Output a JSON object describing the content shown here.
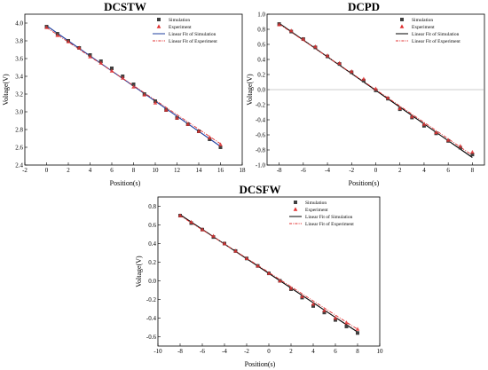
{
  "chart_data": [
    {
      "type": "scatter",
      "title": "DCSTW",
      "xlabel": "Position(s)",
      "ylabel": "Voltage(V)",
      "xlim": [
        -2,
        18
      ],
      "ylim": [
        2.4,
        4.1
      ],
      "xticks": [
        -2,
        0,
        2,
        4,
        6,
        8,
        10,
        12,
        14,
        16,
        18
      ],
      "yticks": [
        2.4,
        2.6,
        2.8,
        3.0,
        3.2,
        3.4,
        3.6,
        3.8,
        4.0
      ],
      "ytick_decimals": 1,
      "zero_line": false,
      "legend": "top-right",
      "series": [
        {
          "name": "Simulation",
          "marker": "square",
          "color": "#404040",
          "x": [
            0,
            1,
            2,
            3,
            4,
            5,
            6,
            7,
            8,
            9,
            10,
            11,
            12,
            13,
            14,
            15,
            16
          ],
          "y": [
            3.96,
            3.88,
            3.8,
            3.72,
            3.64,
            3.57,
            3.49,
            3.4,
            3.31,
            3.2,
            3.12,
            3.02,
            2.93,
            2.86,
            2.78,
            2.69,
            2.6
          ]
        },
        {
          "name": "Experiment",
          "marker": "triangle",
          "color": "#e03030",
          "x": [
            0,
            1,
            2,
            3,
            4,
            5,
            6,
            7,
            8,
            9,
            10,
            11,
            12,
            13,
            14,
            15,
            16
          ],
          "y": [
            3.95,
            3.86,
            3.79,
            3.72,
            3.62,
            3.55,
            3.46,
            3.38,
            3.28,
            3.19,
            3.1,
            3.02,
            2.93,
            2.86,
            2.78,
            2.71,
            2.63
          ]
        },
        {
          "name": "Linear Fit of Simulation",
          "style": "solid",
          "color": "#1f3f9f",
          "x": [
            0,
            16
          ],
          "y": [
            3.97,
            2.61
          ]
        },
        {
          "name": "Linear Fit of Experiment",
          "style": "dashdot",
          "color": "#e03030",
          "x": [
            0,
            16
          ],
          "y": [
            3.95,
            2.64
          ]
        }
      ]
    },
    {
      "type": "scatter",
      "title": "DCPD",
      "xlabel": "Position(s)",
      "ylabel": "Voltage(V)",
      "xlim": [
        -9,
        9
      ],
      "ylim": [
        -1.0,
        1.0
      ],
      "xticks": [
        -8,
        -6,
        -4,
        -2,
        0,
        2,
        4,
        6,
        8
      ],
      "yticks": [
        -1.0,
        -0.8,
        -0.6,
        -0.4,
        -0.2,
        0.0,
        0.2,
        0.4,
        0.6,
        0.8,
        1.0
      ],
      "ytick_decimals": 1,
      "zero_line": true,
      "legend": "top-right",
      "series": [
        {
          "name": "Simulation",
          "marker": "square",
          "color": "#404040",
          "x": [
            -8,
            -7,
            -6,
            -5,
            -4,
            -3,
            -2,
            -1,
            0,
            1,
            2,
            3,
            4,
            5,
            6,
            7,
            8
          ],
          "y": [
            0.87,
            0.77,
            0.67,
            0.56,
            0.44,
            0.34,
            0.23,
            0.12,
            -0.01,
            -0.12,
            -0.26,
            -0.37,
            -0.48,
            -0.58,
            -0.68,
            -0.77,
            -0.86
          ]
        },
        {
          "name": "Experiment",
          "marker": "triangle",
          "color": "#e03030",
          "x": [
            -8,
            -7,
            -6,
            -5,
            -4,
            -3,
            -2,
            -1,
            0,
            1,
            2,
            3,
            4,
            5,
            6,
            7,
            8
          ],
          "y": [
            0.86,
            0.78,
            0.67,
            0.57,
            0.45,
            0.35,
            0.24,
            0.14,
            0.01,
            -0.11,
            -0.25,
            -0.36,
            -0.46,
            -0.57,
            -0.67,
            -0.75,
            -0.83
          ]
        },
        {
          "name": "Linear Fit of Simulation",
          "style": "solid",
          "color": "#000000",
          "x": [
            -8,
            8
          ],
          "y": [
            0.88,
            -0.9
          ]
        },
        {
          "name": "Linear Fit of Experiment",
          "style": "dashdot",
          "color": "#e03030",
          "x": [
            -8,
            8
          ],
          "y": [
            0.87,
            -0.87
          ]
        }
      ]
    },
    {
      "type": "scatter",
      "title": "DCSFW",
      "xlabel": "Position(s)",
      "ylabel": "Voltage(V)",
      "xlim": [
        -10,
        10
      ],
      "ylim": [
        -0.7,
        0.9
      ],
      "xticks": [
        -10,
        -8,
        -6,
        -4,
        -2,
        0,
        2,
        4,
        6,
        8,
        10
      ],
      "yticks": [
        -0.6,
        -0.4,
        -0.2,
        0.0,
        0.2,
        0.4,
        0.6,
        0.8
      ],
      "ytick_decimals": 1,
      "zero_line": false,
      "legend": "top-right",
      "series": [
        {
          "name": "Simulation",
          "marker": "square",
          "color": "#404040",
          "x": [
            -8,
            -7,
            -6,
            -5,
            -4,
            -3,
            -2,
            -1,
            0,
            1,
            2,
            3,
            4,
            5,
            6,
            7,
            8
          ],
          "y": [
            0.7,
            0.62,
            0.55,
            0.47,
            0.4,
            0.32,
            0.24,
            0.16,
            0.08,
            0.0,
            -0.09,
            -0.18,
            -0.27,
            -0.34,
            -0.42,
            -0.49,
            -0.56
          ]
        },
        {
          "name": "Experiment",
          "marker": "triangle",
          "color": "#e03030",
          "x": [
            -8,
            -7,
            -6,
            -5,
            -4,
            -3,
            -2,
            -1,
            0,
            1,
            2,
            3,
            4,
            5,
            6,
            7,
            8
          ],
          "y": [
            0.7,
            0.63,
            0.55,
            0.48,
            0.4,
            0.32,
            0.24,
            0.16,
            0.08,
            0.0,
            -0.08,
            -0.17,
            -0.25,
            -0.32,
            -0.4,
            -0.45,
            -0.52
          ]
        },
        {
          "name": "Linear Fit of Simulation",
          "style": "solid",
          "color": "#000000",
          "x": [
            -8,
            8
          ],
          "y": [
            0.71,
            -0.55
          ]
        },
        {
          "name": "Linear Fit of Experiment",
          "style": "dashdot",
          "color": "#e03030",
          "x": [
            -8,
            8
          ],
          "y": [
            0.7,
            -0.52
          ]
        }
      ]
    }
  ]
}
